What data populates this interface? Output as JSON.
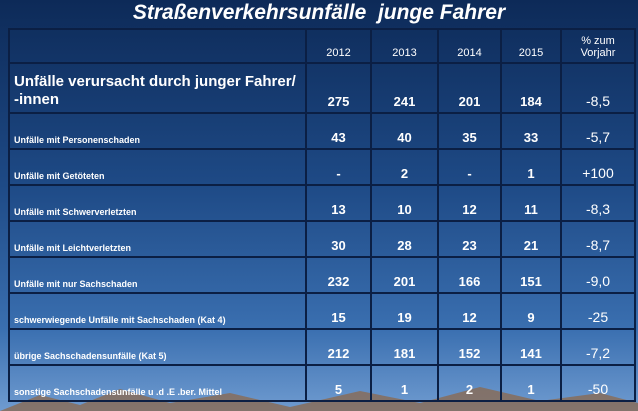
{
  "title": "Straßenverkehrsunfälle  junge Fahrer",
  "table": {
    "columns": [
      "2012",
      "2013",
      "2014",
      "2015",
      "% zum Vorjahr"
    ],
    "rows": [
      {
        "label": "Unfälle verursacht durch junger Fahrer/ -innen",
        "cells": [
          "275",
          "241",
          "201",
          "184",
          "-8,5"
        ]
      },
      {
        "label": "Unfälle mit Personenschaden",
        "cells": [
          "43",
          "40",
          "35",
          "33",
          "-5,7"
        ]
      },
      {
        "label": "Unfälle mit Getöteten",
        "cells": [
          "-",
          "2",
          "-",
          "1",
          "+100"
        ]
      },
      {
        "label": "Unfälle mit Schwerverletzten",
        "cells": [
          "13",
          "10",
          "12",
          "11",
          "-8,3"
        ]
      },
      {
        "label": "Unfälle mit Leichtverletzten",
        "cells": [
          "30",
          "28",
          "23",
          "21",
          "-8,7"
        ]
      },
      {
        "label": "Unfälle mit nur Sachschaden",
        "cells": [
          "232",
          "201",
          "166",
          "151",
          "-9,0"
        ]
      },
      {
        "label": "schwerwiegende Unfälle mit Sachschaden (Kat 4)",
        "cells": [
          "15",
          "19",
          "12",
          "9",
          "-25"
        ]
      },
      {
        "label": "übrige Sachschadensunfälle (Kat 5)",
        "cells": [
          "212",
          "181",
          "152",
          "141",
          "-7,2"
        ]
      },
      {
        "label": "sonstige Sachschadensunfälle u .d .E .ber. Mittel",
        "cells": [
          "5",
          "1",
          "2",
          "1",
          "-50"
        ]
      }
    ]
  }
}
